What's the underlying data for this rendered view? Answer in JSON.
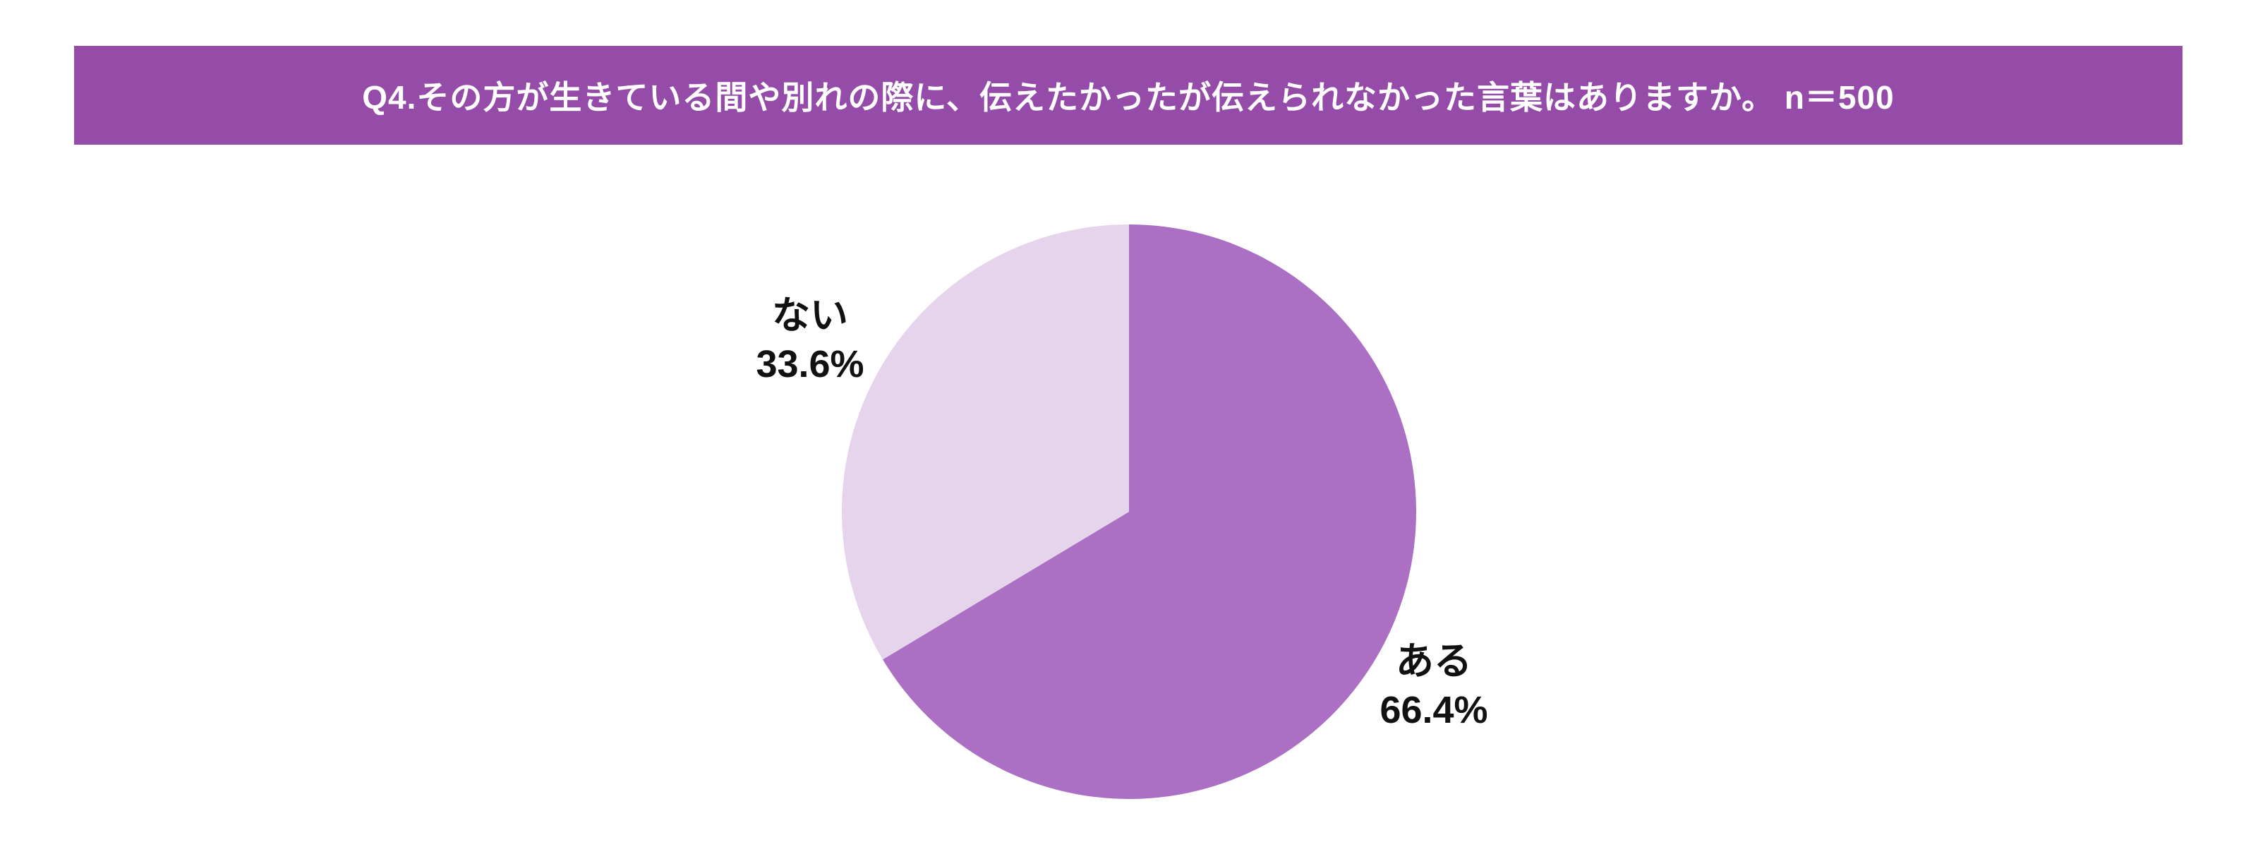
{
  "header": {
    "title": "Q4.その方が生きている間や別れの際に、伝えたかったが伝えられなかった言葉はありますか。 n＝500",
    "bg_color": "#944CA8",
    "text_color": "#FFFFFF"
  },
  "chart_data": {
    "type": "pie",
    "title": "Q4.その方が生きている間や別れの際に、伝えたかったが伝えられなかった言葉はありますか。 n＝500",
    "sample_size_label": "n＝500",
    "start_angle_deg": 0,
    "direction": "clockwise",
    "legend": "none",
    "label_color": "#111111",
    "segments": [
      {
        "label": "ある",
        "value": 66.4,
        "display": "66.4%",
        "color": "#AB6FC4"
      },
      {
        "label": "ない",
        "value": 33.6,
        "display": "33.6%",
        "color": "#E5D4EB"
      }
    ]
  }
}
